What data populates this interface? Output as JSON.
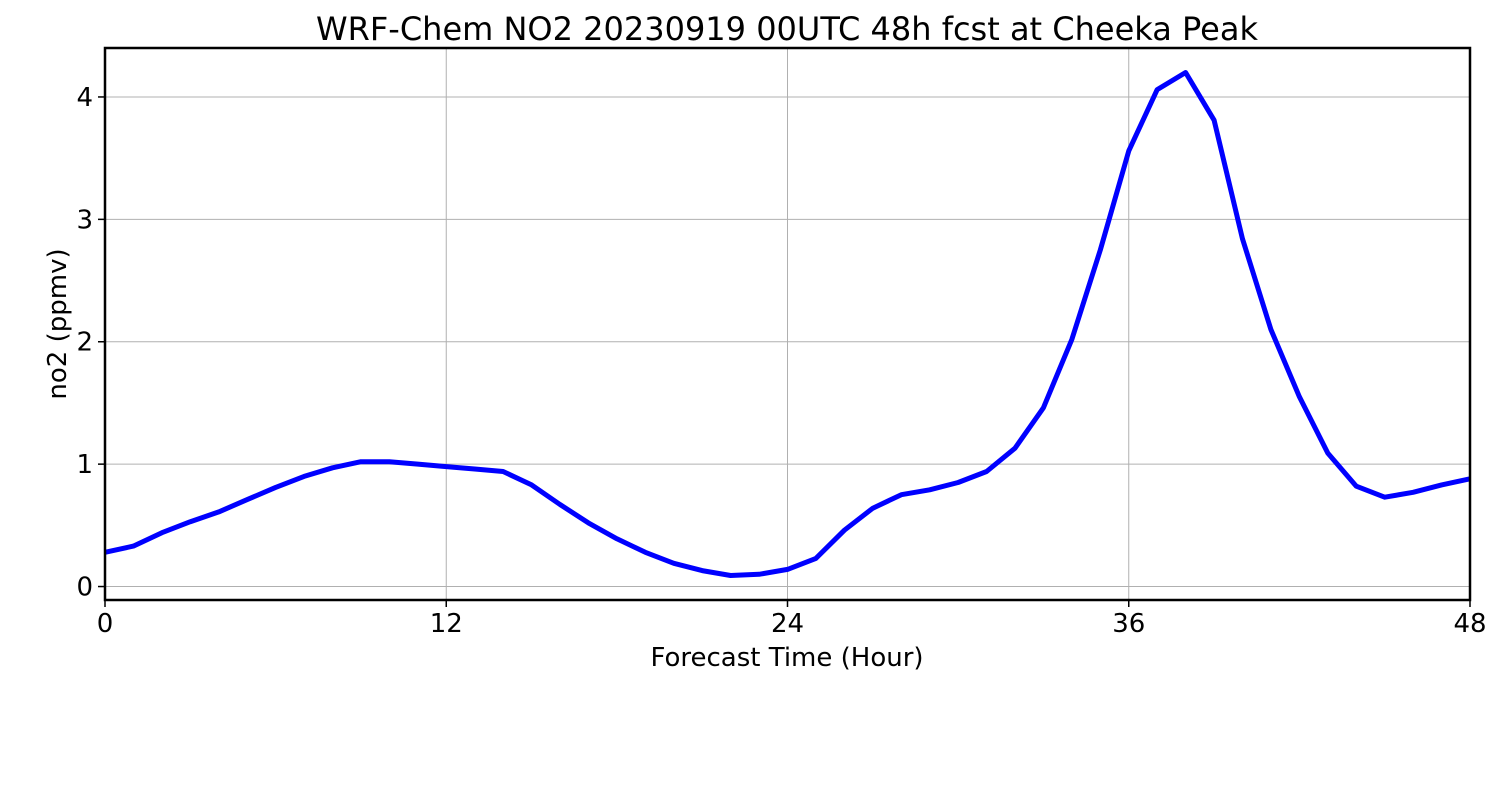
{
  "chart_data": {
    "type": "line",
    "title": "WRF-Chem NO2  20230919 00UTC 48h fcst at Cheeka Peak",
    "xlabel": "Forecast Time (Hour)",
    "ylabel": "no2  (ppmv)",
    "xlim": [
      0,
      48
    ],
    "ylim": [
      -0.11,
      4.4
    ],
    "xticks": [
      0,
      12,
      24,
      36,
      48
    ],
    "yticks": [
      0,
      1,
      2,
      3,
      4
    ],
    "grid": true,
    "series": [
      {
        "color": "#0000ff",
        "x": [
          0,
          1,
          2,
          3,
          4,
          5,
          6,
          7,
          8,
          9,
          10,
          11,
          12,
          13,
          14,
          15,
          16,
          17,
          18,
          19,
          20,
          21,
          22,
          23,
          24,
          25,
          26,
          27,
          28,
          29,
          30,
          31,
          32,
          33,
          34,
          35,
          36,
          37,
          38,
          39,
          40,
          41,
          42,
          43,
          44,
          45,
          46,
          47,
          48
        ],
        "y": [
          0.28,
          0.33,
          0.44,
          0.53,
          0.61,
          0.71,
          0.81,
          0.9,
          0.97,
          1.02,
          1.02,
          1.0,
          0.98,
          0.96,
          0.94,
          0.83,
          0.67,
          0.52,
          0.39,
          0.28,
          0.19,
          0.13,
          0.09,
          0.1,
          0.14,
          0.23,
          0.46,
          0.64,
          0.75,
          0.79,
          0.85,
          0.94,
          1.13,
          1.46,
          2.02,
          2.75,
          3.56,
          4.06,
          4.2,
          3.81,
          2.84,
          2.1,
          1.55,
          1.09,
          0.82,
          0.73,
          0.77,
          0.83,
          0.88
        ]
      }
    ]
  }
}
